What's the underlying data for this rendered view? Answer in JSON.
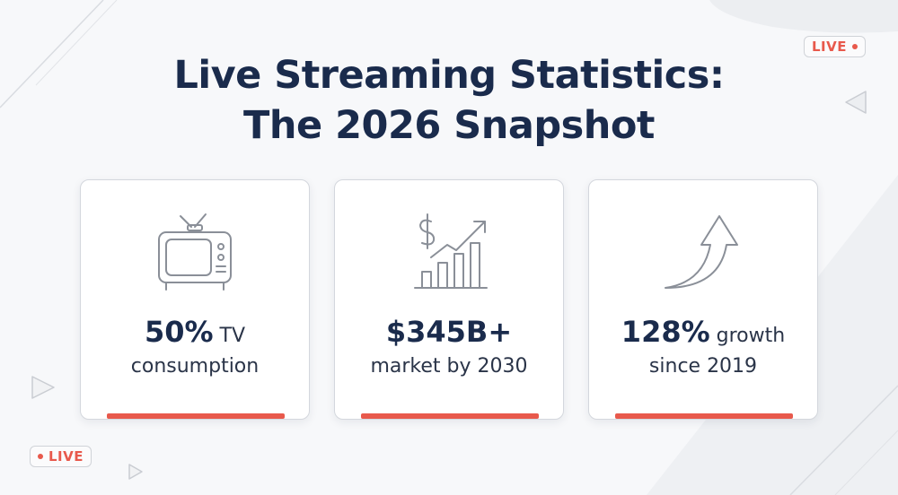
{
  "title": {
    "line1": "Live Streaming Statistics:",
    "line2": "The 2026 Snapshot"
  },
  "cards": [
    {
      "icon": "tv-icon",
      "value": "50%",
      "suffix": " TV",
      "line2": "consumption"
    },
    {
      "icon": "growth-chart-icon",
      "value": "$345B+",
      "suffix": "",
      "line2": "market by 2030"
    },
    {
      "icon": "up-arrow-icon",
      "value": "128%",
      "suffix": " growth",
      "line2": "since 2019"
    }
  ],
  "badges": {
    "top_right": "LIVE",
    "bottom_left": "LIVE"
  },
  "colors": {
    "accent": "#e8594c",
    "title": "#1a2b4c",
    "background": "#f7f8fa",
    "icon_stroke": "#8a8f98"
  }
}
